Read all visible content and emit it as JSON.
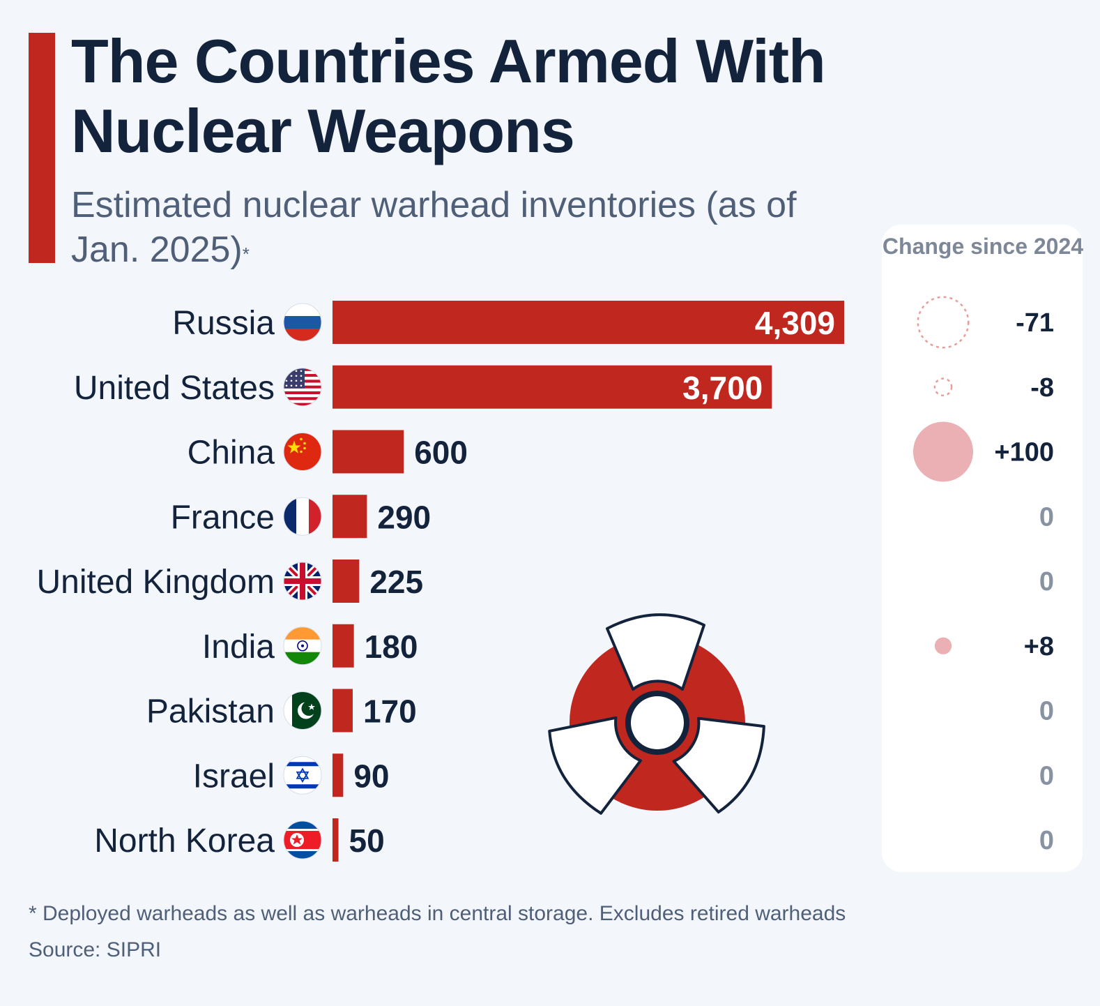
{
  "header": {
    "title": "The Countries Armed With Nuclear Weapons",
    "subtitle": "Estimated nuclear warhead inventories (as of Jan. 2025)",
    "subtitle_mark": "*"
  },
  "change_panel": {
    "header": "Change since 2024"
  },
  "footer": {
    "footnote": "* Deployed warheads as well as warheads in central storage. Excludes retired warheads",
    "source": "Source: SIPRI"
  },
  "colors": {
    "bar": "#c0271f",
    "title": "#13233c",
    "increase_bubble": "#eab0b3",
    "decrease_outline": "#e89d98",
    "zero_text": "#8792a3"
  },
  "chart_data": {
    "type": "bar",
    "orientation": "horizontal",
    "title": "The Countries Armed With Nuclear Weapons",
    "subtitle": "Estimated nuclear warhead inventories (as of Jan. 2025)*",
    "categories": [
      "Russia",
      "United States",
      "China",
      "France",
      "United Kingdom",
      "India",
      "Pakistan",
      "Israel",
      "North Korea"
    ],
    "values": [
      4309,
      3700,
      600,
      290,
      225,
      180,
      170,
      90,
      50
    ],
    "value_labels": [
      "4,309",
      "3,700",
      "600",
      "290",
      "225",
      "180",
      "170",
      "90",
      "50"
    ],
    "change_since_2024": [
      -71,
      -8,
      100,
      0,
      0,
      8,
      0,
      0,
      0
    ],
    "change_labels": [
      "-71",
      "-8",
      "+100",
      "0",
      "0",
      "+8",
      "0",
      "0",
      "0"
    ],
    "flags": [
      "russia-flag-icon",
      "usa-flag-icon",
      "china-flag-icon",
      "france-flag-icon",
      "uk-flag-icon",
      "india-flag-icon",
      "pakistan-flag-icon",
      "israel-flag-icon",
      "north-korea-flag-icon"
    ],
    "xlim": [
      0,
      4309
    ],
    "decoration": "radiation-trefoil-icon"
  }
}
